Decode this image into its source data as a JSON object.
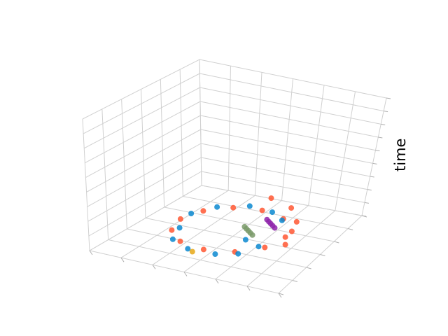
{
  "chart_data": {
    "type": "scatter",
    "projection": "3d",
    "title": "",
    "xlabel": "",
    "ylabel": "",
    "zlabel": "time",
    "grid": true,
    "tick_labels_shown": false,
    "xlim": [
      -1,
      1
    ],
    "ylim": [
      -1,
      1
    ],
    "zlim": [
      0,
      10
    ],
    "series": [
      {
        "color": "#ff5733",
        "shape": "circular path rising slowly in time, then an open arc",
        "points": [
          {
            "x": 0.6,
            "y": 0.0,
            "z": 0.2
          },
          {
            "x": 0.52,
            "y": 0.3,
            "z": 0.25
          },
          {
            "x": 0.3,
            "y": 0.52,
            "z": 0.3
          },
          {
            "x": 0.0,
            "y": 0.6,
            "z": 0.35
          },
          {
            "x": -0.3,
            "y": 0.52,
            "z": 0.4
          },
          {
            "x": -0.52,
            "y": 0.3,
            "z": 0.45
          },
          {
            "x": -0.6,
            "y": 0.0,
            "z": 0.5
          },
          {
            "x": -0.52,
            "y": -0.3,
            "z": 0.55
          },
          {
            "x": -0.3,
            "y": -0.52,
            "z": 0.6
          },
          {
            "x": 0.0,
            "y": -0.6,
            "z": 0.65
          },
          {
            "x": 0.3,
            "y": -0.52,
            "z": 0.7
          },
          {
            "x": 0.52,
            "y": -0.3,
            "z": 0.75
          },
          {
            "x": 0.6,
            "y": 0.0,
            "z": 0.8
          },
          {
            "x": 0.55,
            "y": 0.35,
            "z": 0.9
          },
          {
            "x": 0.35,
            "y": 0.6,
            "z": 1.0
          },
          {
            "x": 0.05,
            "y": 0.7,
            "z": 1.1
          }
        ]
      },
      {
        "color": "#0a88d0",
        "shape": "circular path near the bottom",
        "points": [
          {
            "x": -0.55,
            "y": -0.1,
            "z": 0.15
          },
          {
            "x": -0.45,
            "y": -0.4,
            "z": 0.2
          },
          {
            "x": -0.2,
            "y": -0.55,
            "z": 0.25
          },
          {
            "x": 0.1,
            "y": -0.55,
            "z": 0.3
          },
          {
            "x": 0.3,
            "y": -0.45,
            "z": 0.35
          },
          {
            "x": -0.6,
            "y": 0.2,
            "z": 0.4
          },
          {
            "x": -0.45,
            "y": 0.45,
            "z": 0.45
          },
          {
            "x": -0.15,
            "y": 0.6,
            "z": 0.5
          },
          {
            "x": 0.15,
            "y": 0.55,
            "z": 0.55
          },
          {
            "x": 0.35,
            "y": 0.4,
            "z": 0.6
          },
          {
            "x": 0.2,
            "y": -0.1,
            "z": 0.3
          },
          {
            "x": 0.4,
            "y": -0.2,
            "z": 0.35
          }
        ]
      },
      {
        "color": "#8e24aa",
        "shape": "short cluster",
        "points": [
          {
            "x": 0.2,
            "y": 0.35,
            "z": 0.6
          },
          {
            "x": 0.25,
            "y": 0.3,
            "z": 0.65
          },
          {
            "x": 0.3,
            "y": 0.25,
            "z": 0.7
          },
          {
            "x": 0.35,
            "y": 0.2,
            "z": 0.75
          },
          {
            "x": 0.4,
            "y": 0.15,
            "z": 0.8
          }
        ]
      },
      {
        "color": "#7a9a6a",
        "shape": "short cluster",
        "points": [
          {
            "x": 0.05,
            "y": 0.15,
            "z": 0.4
          },
          {
            "x": 0.1,
            "y": 0.1,
            "z": 0.45
          },
          {
            "x": 0.15,
            "y": 0.05,
            "z": 0.5
          },
          {
            "x": 0.2,
            "y": 0.0,
            "z": 0.55
          },
          {
            "x": 0.25,
            "y": -0.05,
            "z": 0.6
          }
        ]
      },
      {
        "color": "#e6a817",
        "shape": "single point",
        "points": [
          {
            "x": -0.15,
            "y": -0.55,
            "z": 0.1
          }
        ]
      }
    ]
  }
}
